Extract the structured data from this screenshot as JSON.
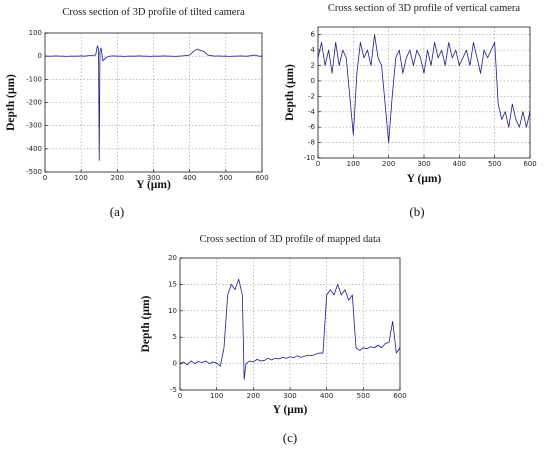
{
  "chart_data": [
    {
      "type": "line",
      "title": "Cross section of 3D profile of tilted camera",
      "xlabel": "Y (µm)",
      "ylabel": "Depth (µm)",
      "caption": "(a)",
      "color": "#1c1c8c",
      "grid": true,
      "x": [
        0,
        10,
        20,
        30,
        40,
        50,
        60,
        70,
        80,
        90,
        100,
        110,
        120,
        130,
        140,
        145,
        148,
        150,
        152,
        155,
        160,
        170,
        180,
        190,
        200,
        210,
        220,
        230,
        240,
        250,
        260,
        270,
        280,
        290,
        300,
        310,
        320,
        330,
        340,
        350,
        360,
        370,
        380,
        390,
        400,
        410,
        420,
        430,
        440,
        450,
        460,
        470,
        480,
        490,
        500,
        510,
        520,
        530,
        540,
        550,
        560,
        570,
        580,
        590,
        600
      ],
      "values": [
        0,
        0,
        0,
        1,
        0,
        0,
        -1,
        0,
        0,
        0,
        1,
        0,
        2,
        3,
        5,
        45,
        30,
        -450,
        20,
        35,
        -20,
        -5,
        0,
        1,
        0,
        0,
        -1,
        0,
        0,
        0,
        1,
        0,
        0,
        -1,
        0,
        0,
        0,
        1,
        0,
        0,
        -1,
        0,
        1,
        3,
        5,
        20,
        30,
        25,
        20,
        5,
        2,
        0,
        1,
        0,
        0,
        -1,
        0,
        0,
        1,
        0,
        0,
        2,
        5,
        0,
        0
      ],
      "xlim": [
        0,
        600
      ],
      "ylim": [
        -500,
        100
      ],
      "xticks": [
        0,
        100,
        200,
        300,
        400,
        500,
        600
      ],
      "yticks": [
        -500,
        -400,
        -300,
        -200,
        -100,
        0,
        100
      ]
    },
    {
      "type": "line",
      "title": "Cross section of 3D profile of vertical camera",
      "xlabel": "Y (µm)",
      "ylabel": "Depth (µm)",
      "caption": "(b)",
      "color": "#1c1c8c",
      "grid": true,
      "x": [
        0,
        10,
        20,
        30,
        40,
        50,
        60,
        70,
        80,
        90,
        100,
        110,
        120,
        130,
        140,
        150,
        160,
        170,
        180,
        190,
        200,
        210,
        220,
        230,
        240,
        250,
        260,
        270,
        280,
        290,
        300,
        310,
        320,
        330,
        340,
        350,
        360,
        370,
        380,
        390,
        400,
        410,
        420,
        430,
        440,
        450,
        460,
        470,
        480,
        490,
        500,
        510,
        520,
        530,
        540,
        550,
        560,
        570,
        580,
        590,
        600
      ],
      "values": [
        3,
        5,
        2,
        4,
        1,
        5,
        2,
        4,
        3,
        -2,
        -7,
        1,
        5,
        3,
        4,
        2,
        6,
        3,
        2,
        -3,
        -8,
        -2,
        3,
        4,
        1,
        3,
        4,
        2,
        4,
        3,
        1,
        4,
        2,
        5,
        3,
        4,
        2,
        5,
        3,
        4,
        2,
        3,
        4,
        2,
        5,
        3,
        1,
        4,
        3,
        4,
        5,
        -3,
        -5,
        -4,
        -6,
        -3,
        -5,
        -6,
        -4,
        -6,
        -4
      ],
      "xlim": [
        0,
        600
      ],
      "ylim": [
        -10,
        7
      ],
      "xticks": [
        0,
        100,
        200,
        300,
        400,
        500,
        600
      ],
      "yticks": [
        -10,
        -8,
        -6,
        -4,
        -2,
        0,
        2,
        4,
        6
      ]
    },
    {
      "type": "line",
      "title": "Cross section of 3D profile of mapped data",
      "xlabel": "Y (µm)",
      "ylabel": "Depth (µm)",
      "caption": "(c)",
      "color": "#1c1c8c",
      "grid": true,
      "x": [
        0,
        10,
        20,
        30,
        40,
        50,
        60,
        70,
        80,
        90,
        100,
        110,
        120,
        130,
        140,
        150,
        160,
        170,
        175,
        180,
        190,
        200,
        210,
        220,
        230,
        240,
        250,
        260,
        270,
        280,
        290,
        300,
        310,
        320,
        330,
        340,
        350,
        360,
        370,
        380,
        390,
        400,
        410,
        420,
        430,
        440,
        450,
        460,
        470,
        480,
        490,
        500,
        510,
        520,
        530,
        540,
        550,
        560,
        570,
        580,
        590,
        600
      ],
      "values": [
        0,
        0.3,
        -0.2,
        0.5,
        0,
        0.4,
        0.2,
        0.5,
        0,
        0.3,
        0.1,
        -0.5,
        3,
        13,
        15,
        14,
        16,
        13,
        -3,
        0,
        0.5,
        0.3,
        0.8,
        0.5,
        0.6,
        1,
        0.7,
        1,
        0.9,
        1.2,
        1,
        1.3,
        1.1,
        1.5,
        1.2,
        1.4,
        1.6,
        1.5,
        1.8,
        2,
        2,
        13,
        14,
        13,
        15,
        13,
        14,
        12,
        13,
        3,
        2.5,
        3,
        2.8,
        3.2,
        3,
        3.5,
        3,
        3.8,
        4,
        8,
        2,
        3
      ],
      "xlim": [
        0,
        600
      ],
      "ylim": [
        -5,
        20
      ],
      "xticks": [
        0,
        100,
        200,
        300,
        400,
        500,
        600
      ],
      "yticks": [
        -5,
        0,
        5,
        10,
        15,
        20
      ]
    }
  ]
}
